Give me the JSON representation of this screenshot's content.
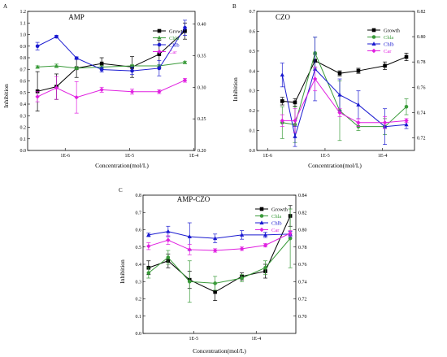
{
  "chart_data": [
    {
      "type": "line",
      "panel_label": "A",
      "title": "AMP",
      "xlabel": "Concentration(mol/L)",
      "ylabel": "Inhibition",
      "x_scale": "log",
      "x_ticks": [
        "1E-6",
        "1E-5",
        "1E-4"
      ],
      "ylim": [
        0.0,
        1.2
      ],
      "y_ticks": [
        "0.0",
        "0.1",
        "0.2",
        "0.3",
        "0.4",
        "0.5",
        "0.6",
        "0.7",
        "0.8",
        "0.9",
        "1.0",
        "1.1",
        "1.2"
      ],
      "y2lim": [
        0.2,
        0.42
      ],
      "y2_ticks": [
        "0.20",
        "0.25",
        "0.30",
        "0.35",
        "0.40"
      ],
      "legend_position": "top-right",
      "series": [
        {
          "name": "Growth",
          "color": "#000000",
          "marker": "square",
          "axis": "left",
          "x": [
            3.7e-07,
            7.3e-07,
            1.5e-06,
            3.7e-06,
            1.1e-05,
            2.9e-05,
            7.3e-05
          ],
          "y": [
            0.51,
            0.55,
            0.71,
            0.75,
            0.72,
            0.83,
            1.03
          ],
          "err": [
            0.17,
            0.11,
            0.08,
            0.05,
            0.09,
            0.12,
            0.07
          ]
        },
        {
          "name": "Chla",
          "color": "#3a9b3a",
          "marker": "triangle",
          "axis": "left",
          "x": [
            3.7e-07,
            7.3e-07,
            1.5e-06,
            3.7e-06,
            1.1e-05,
            2.9e-05,
            7.3e-05
          ],
          "y": [
            0.72,
            0.73,
            0.71,
            0.72,
            0.73,
            0.73,
            0.76
          ],
          "err": [
            0.01,
            0.015,
            0.01,
            0.01,
            0.01,
            0.01,
            0.01
          ]
        },
        {
          "name": "Chlb",
          "color": "#1a1ad0",
          "marker": "circle",
          "axis": "right",
          "x": [
            3.7e-07,
            7.3e-07,
            1.5e-06,
            3.7e-06,
            1.1e-05,
            2.9e-05,
            7.3e-05
          ],
          "y": [
            0.365,
            0.38,
            0.346,
            0.328,
            0.326,
            0.33,
            0.394
          ],
          "err": [
            0.006,
            0.002,
            0.002,
            0.004,
            0.006,
            0.012,
            0.012
          ]
        },
        {
          "name": "Car",
          "color": "#e020e0",
          "marker": "diamond",
          "axis": "right",
          "x": [
            3.7e-07,
            7.3e-07,
            1.5e-06,
            3.7e-06,
            1.1e-05,
            2.9e-05,
            7.3e-05
          ],
          "y": [
            0.285,
            0.299,
            0.284,
            0.296,
            0.293,
            0.293,
            0.311
          ],
          "err": [
            0.008,
            0.018,
            0.025,
            0.004,
            0.004,
            0.003,
            0.003
          ]
        }
      ]
    },
    {
      "type": "line",
      "panel_label": "B",
      "title": "CZO",
      "xlabel": "Concentration(mol/L)",
      "ylabel": "Inhibition",
      "x_scale": "log",
      "x_ticks": [
        "1E-6",
        "1E-5",
        "1E-4"
      ],
      "ylim": [
        0.0,
        0.7
      ],
      "y_ticks": [
        "0.0",
        "0.1",
        "0.2",
        "0.3",
        "0.4",
        "0.5",
        "0.6",
        "0.7"
      ],
      "y2lim": [
        0.71,
        0.82
      ],
      "y2_ticks": [
        "0.72",
        "0.74",
        "0.76",
        "0.78",
        "0.80",
        "0.82"
      ],
      "legend_position": "top-right",
      "series": [
        {
          "name": "Growth",
          "color": "#000000",
          "marker": "square",
          "axis": "right",
          "x": [
            1.8e-06,
            3e-06,
            6.7e-06,
            1.8e-05,
            3.8e-05,
            0.00011,
            0.00026
          ],
          "y": [
            0.749,
            0.748,
            0.781,
            0.771,
            0.773,
            0.777,
            0.784
          ],
          "err": [
            0.003,
            0.003,
            0.005,
            0.002,
            0.002,
            0.003,
            0.003
          ]
        },
        {
          "name": "Chla",
          "color": "#3a9b3a",
          "marker": "circle",
          "axis": "left",
          "x": [
            1.8e-06,
            3e-06,
            6.7e-06,
            1.8e-05,
            3.8e-05,
            0.00011,
            0.00026
          ],
          "y": [
            0.14,
            0.13,
            0.49,
            0.2,
            0.12,
            0.12,
            0.22
          ],
          "err": [
            0.08,
            0.09,
            0.08,
            0.15,
            0.02,
            0.04,
            0.04
          ]
        },
        {
          "name": "Chlb",
          "color": "#1a1ad0",
          "marker": "triangle",
          "axis": "left",
          "x": [
            1.8e-06,
            3e-06,
            6.7e-06,
            1.8e-05,
            3.8e-05,
            0.00011,
            0.00026
          ],
          "y": [
            0.38,
            0.07,
            0.41,
            0.28,
            0.23,
            0.12,
            0.13
          ],
          "err": [
            0.06,
            0.05,
            0.16,
            0.08,
            0.07,
            0.09,
            0.02
          ]
        },
        {
          "name": "Car",
          "color": "#e020e0",
          "marker": "diamond",
          "axis": "left",
          "x": [
            1.8e-06,
            3e-06,
            6.7e-06,
            1.8e-05,
            3.8e-05,
            0.00011,
            0.00026
          ],
          "y": [
            0.15,
            0.15,
            0.36,
            0.19,
            0.14,
            0.14,
            0.15
          ],
          "err": [
            0.03,
            0.06,
            0.06,
            0.02,
            0.02,
            0.03,
            0.01
          ]
        }
      ]
    },
    {
      "type": "line",
      "panel_label": "C",
      "title": "AMP-CZO",
      "xlabel": "Concentration(mol/L)",
      "ylabel": "Inhibition",
      "x_scale": "log",
      "x_ticks": [
        "1E-5",
        "1E-4"
      ],
      "ylim": [
        0.0,
        0.8
      ],
      "y_ticks": [
        "0.0",
        "0.1",
        "0.2",
        "0.3",
        "0.4",
        "0.5",
        "0.6",
        "0.7",
        "0.8"
      ],
      "y2lim": [
        0.68,
        0.84
      ],
      "y2_ticks": [
        "0.70",
        "0.72",
        "0.74",
        "0.76",
        "0.78",
        "0.80",
        "0.82",
        "0.84"
      ],
      "legend_position": "top-right",
      "series": [
        {
          "name": "Growth",
          "color": "#000000",
          "marker": "square",
          "axis": "left",
          "x": [
            1.9e-06,
            3.9e-06,
            8.6e-06,
            2.2e-05,
            5.9e-05,
            0.00014,
            0.00035
          ],
          "y": [
            0.38,
            0.42,
            0.31,
            0.24,
            0.33,
            0.36,
            0.68
          ],
          "err": [
            0.04,
            0.04,
            0.05,
            0.05,
            0.02,
            0.04,
            0.06
          ]
        },
        {
          "name": "Chla",
          "color": "#3a9b3a",
          "marker": "circle",
          "axis": "left",
          "x": [
            1.9e-06,
            3.9e-06,
            8.6e-06,
            2.2e-05,
            5.9e-05,
            0.00014,
            0.00035
          ],
          "y": [
            0.35,
            0.44,
            0.3,
            0.29,
            0.32,
            0.38,
            0.55
          ],
          "err": [
            0.03,
            0.04,
            0.12,
            0.04,
            0.02,
            0.04,
            0.17
          ]
        },
        {
          "name": "Chlb",
          "color": "#1a1ad0",
          "marker": "triangle",
          "axis": "right",
          "x": [
            1.9e-06,
            3.9e-06,
            8.6e-06,
            2.2e-05,
            5.9e-05,
            0.00014,
            0.00035
          ],
          "y": [
            0.794,
            0.798,
            0.792,
            0.79,
            0.794,
            0.794,
            0.795
          ],
          "err": [
            0.002,
            0.006,
            0.016,
            0.005,
            0.005,
            0.003,
            0.003
          ]
        },
        {
          "name": "Car",
          "color": "#e020e0",
          "marker": "diamond",
          "axis": "right",
          "x": [
            1.9e-06,
            3.9e-06,
            8.6e-06,
            2.2e-05,
            5.9e-05,
            0.00014,
            0.00035
          ],
          "y": [
            0.781,
            0.788,
            0.777,
            0.776,
            0.778,
            0.782,
            0.796
          ],
          "err": [
            0.004,
            0.005,
            0.006,
            0.002,
            0.002,
            0.002,
            0.003
          ]
        }
      ]
    }
  ]
}
